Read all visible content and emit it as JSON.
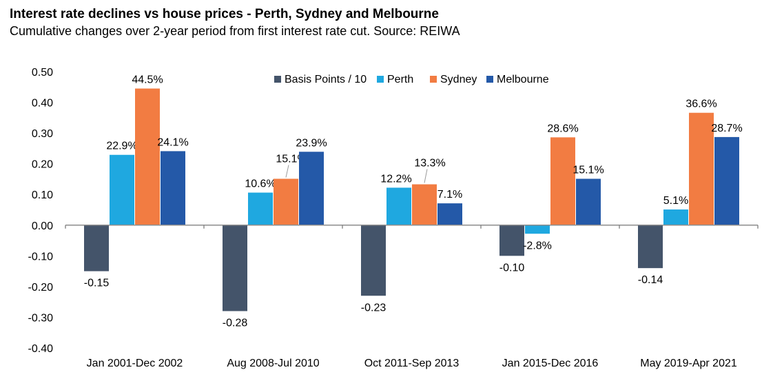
{
  "title": "Interest rate declines vs house prices - Perth, Sydney and Melbourne",
  "subtitle": "Cumulative changes over 2-year period from first interest rate cut. Source: REIWA",
  "chart_data": {
    "type": "bar",
    "categories": [
      "Jan 2001-Dec 2002",
      "Aug 2008-Jul 2010",
      "Oct 2011-Sep 2013",
      "Jan 2015-Dec 2016",
      "May 2019-Apr 2021"
    ],
    "ylim": [
      -0.4,
      0.5
    ],
    "yticks": [
      0.5,
      0.4,
      0.3,
      0.2,
      0.1,
      0.0,
      -0.1,
      -0.2,
      -0.3,
      -0.4
    ],
    "ytick_labels": [
      "0.50",
      "0.40",
      "0.30",
      "0.20",
      "0.10",
      "0.00",
      "-0.10",
      "-0.20",
      "-0.30",
      "-0.40"
    ],
    "legend_position": "top-center",
    "series": [
      {
        "name": "Basis Points / 10",
        "color": "#44546a",
        "values": [
          -0.15,
          -0.28,
          -0.23,
          -0.1,
          -0.14
        ],
        "labels": [
          "-0.15",
          "-0.28",
          "-0.23",
          "-0.10",
          "-0.14"
        ]
      },
      {
        "name": "Perth",
        "color": "#1fa8e0",
        "values": [
          0.229,
          0.106,
          0.122,
          -0.028,
          0.051
        ],
        "labels": [
          "22.9%",
          "10.6%",
          "12.2%",
          "-2.8%",
          "5.1%"
        ]
      },
      {
        "name": "Sydney",
        "color": "#f27c42",
        "values": [
          0.445,
          0.151,
          0.133,
          0.286,
          0.366
        ],
        "labels": [
          "44.5%",
          "15.1%",
          "13.3%",
          "28.6%",
          "36.6%"
        ]
      },
      {
        "name": "Melbourne",
        "color": "#2459a8",
        "values": [
          0.241,
          0.239,
          0.071,
          0.151,
          0.287
        ],
        "labels": [
          "24.1%",
          "23.9%",
          "7.1%",
          "15.1%",
          "28.7%"
        ]
      }
    ]
  }
}
